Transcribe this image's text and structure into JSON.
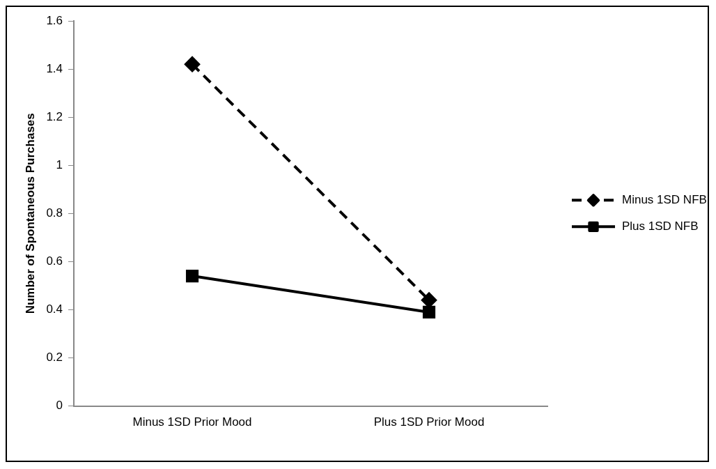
{
  "chart_data": {
    "type": "line",
    "ylabel": "Number of Spontaneous Purchases",
    "categories": [
      "Minus 1SD Prior Mood",
      "Plus 1SD Prior Mood"
    ],
    "ylim": [
      0,
      1.6
    ],
    "yticks": [
      0,
      0.2,
      0.4,
      0.6,
      0.8,
      1,
      1.2,
      1.4,
      1.6
    ],
    "grid": false,
    "legend": "right",
    "series": [
      {
        "name": "Minus 1SD NFB",
        "color": "#000000",
        "values": [
          1.42,
          0.44
        ],
        "marker": "diamond",
        "line_style": "dashed"
      },
      {
        "name": "Plus 1SD NFB",
        "color": "#000000",
        "values": [
          0.54,
          0.39
        ],
        "marker": "square",
        "line_style": "solid"
      }
    ]
  }
}
